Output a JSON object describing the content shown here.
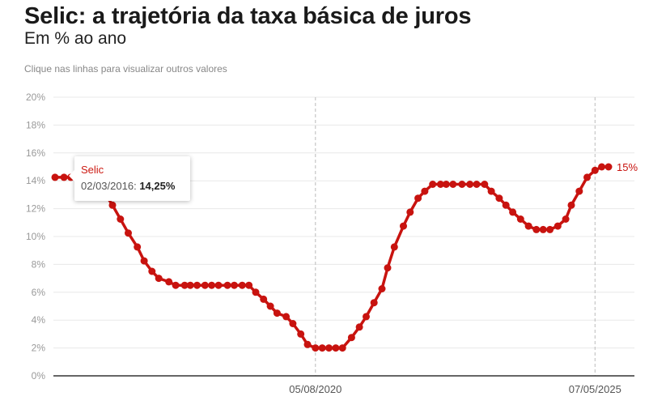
{
  "header": {
    "title": "Selic: a trajetória da taxa básica de juros",
    "subtitle": "Em % ao ano",
    "hint": "Clique nas linhas para visualizar outros valores"
  },
  "tooltip": {
    "series": "Selic",
    "date": "02/03/2016",
    "separator": ":",
    "value": "14,25%"
  },
  "colors": {
    "series": "#c8130f",
    "grid": "#e8e8e8",
    "axis": "#333333",
    "ref_line": "#bbbbbb",
    "tick_text": "#999999"
  },
  "chart_data": {
    "type": "line",
    "title": "Selic: a trajetória da taxa básica de juros",
    "ylabel": "Em % ao ano",
    "ylim": [
      0,
      20
    ],
    "yticks": [
      0,
      2,
      4,
      6,
      8,
      10,
      12,
      14,
      16,
      18,
      20
    ],
    "ytick_labels": [
      "0%",
      "2%",
      "4%",
      "6%",
      "8%",
      "10%",
      "12%",
      "14%",
      "16%",
      "18%",
      "20%"
    ],
    "x_range": [
      "2016-03-02",
      "2025-07-30"
    ],
    "x_ticks": [
      {
        "date": "2020-08-05",
        "label": "05/08/2020"
      },
      {
        "date": "2025-05-07",
        "label": "07/05/2025"
      }
    ],
    "grid": true,
    "end_label": "15%",
    "series": [
      {
        "name": "Selic",
        "dates": [
          "2016-03-02",
          "2016-04-27",
          "2016-06-08",
          "2016-07-20",
          "2016-08-31",
          "2016-10-19",
          "2016-11-30",
          "2017-01-11",
          "2017-02-22",
          "2017-04-12",
          "2017-05-31",
          "2017-07-26",
          "2017-09-06",
          "2017-10-25",
          "2017-12-06",
          "2018-02-07",
          "2018-03-21",
          "2018-05-16",
          "2018-06-20",
          "2018-08-01",
          "2018-09-19",
          "2018-10-31",
          "2018-12-12",
          "2019-02-06",
          "2019-03-20",
          "2019-05-08",
          "2019-06-19",
          "2019-07-31",
          "2019-09-18",
          "2019-10-30",
          "2019-12-11",
          "2020-02-05",
          "2020-03-18",
          "2020-05-06",
          "2020-06-17",
          "2020-08-05",
          "2020-09-16",
          "2020-10-28",
          "2020-12-09",
          "2021-01-20",
          "2021-03-17",
          "2021-05-05",
          "2021-06-16",
          "2021-08-04",
          "2021-09-22",
          "2021-10-27",
          "2021-12-08",
          "2022-02-02",
          "2022-03-16",
          "2022-05-04",
          "2022-06-15",
          "2022-08-03",
          "2022-09-21",
          "2022-10-26",
          "2022-12-07",
          "2023-02-01",
          "2023-03-22",
          "2023-05-03",
          "2023-06-21",
          "2023-08-02",
          "2023-09-20",
          "2023-11-01",
          "2023-12-13",
          "2024-01-31",
          "2024-03-20",
          "2024-05-08",
          "2024-06-19",
          "2024-07-31",
          "2024-09-18",
          "2024-11-06",
          "2024-12-11",
          "2025-01-29",
          "2025-03-19",
          "2025-05-07",
          "2025-06-18",
          "2025-07-30"
        ],
        "values": [
          14.25,
          14.25,
          14.25,
          14.25,
          14.25,
          14.0,
          13.75,
          13.0,
          12.25,
          11.25,
          10.25,
          9.25,
          8.25,
          7.5,
          7.0,
          6.75,
          6.5,
          6.5,
          6.5,
          6.5,
          6.5,
          6.5,
          6.5,
          6.5,
          6.5,
          6.5,
          6.5,
          6.0,
          5.5,
          5.0,
          4.5,
          4.25,
          3.75,
          3.0,
          2.25,
          2.0,
          2.0,
          2.0,
          2.0,
          2.0,
          2.75,
          3.5,
          4.25,
          5.25,
          6.25,
          7.75,
          9.25,
          10.75,
          11.75,
          12.75,
          13.25,
          13.75,
          13.75,
          13.75,
          13.75,
          13.75,
          13.75,
          13.75,
          13.75,
          13.25,
          12.75,
          12.25,
          11.75,
          11.25,
          10.75,
          10.5,
          10.5,
          10.5,
          10.75,
          11.25,
          12.25,
          13.25,
          14.25,
          14.75,
          15.0,
          15.0
        ]
      }
    ]
  }
}
